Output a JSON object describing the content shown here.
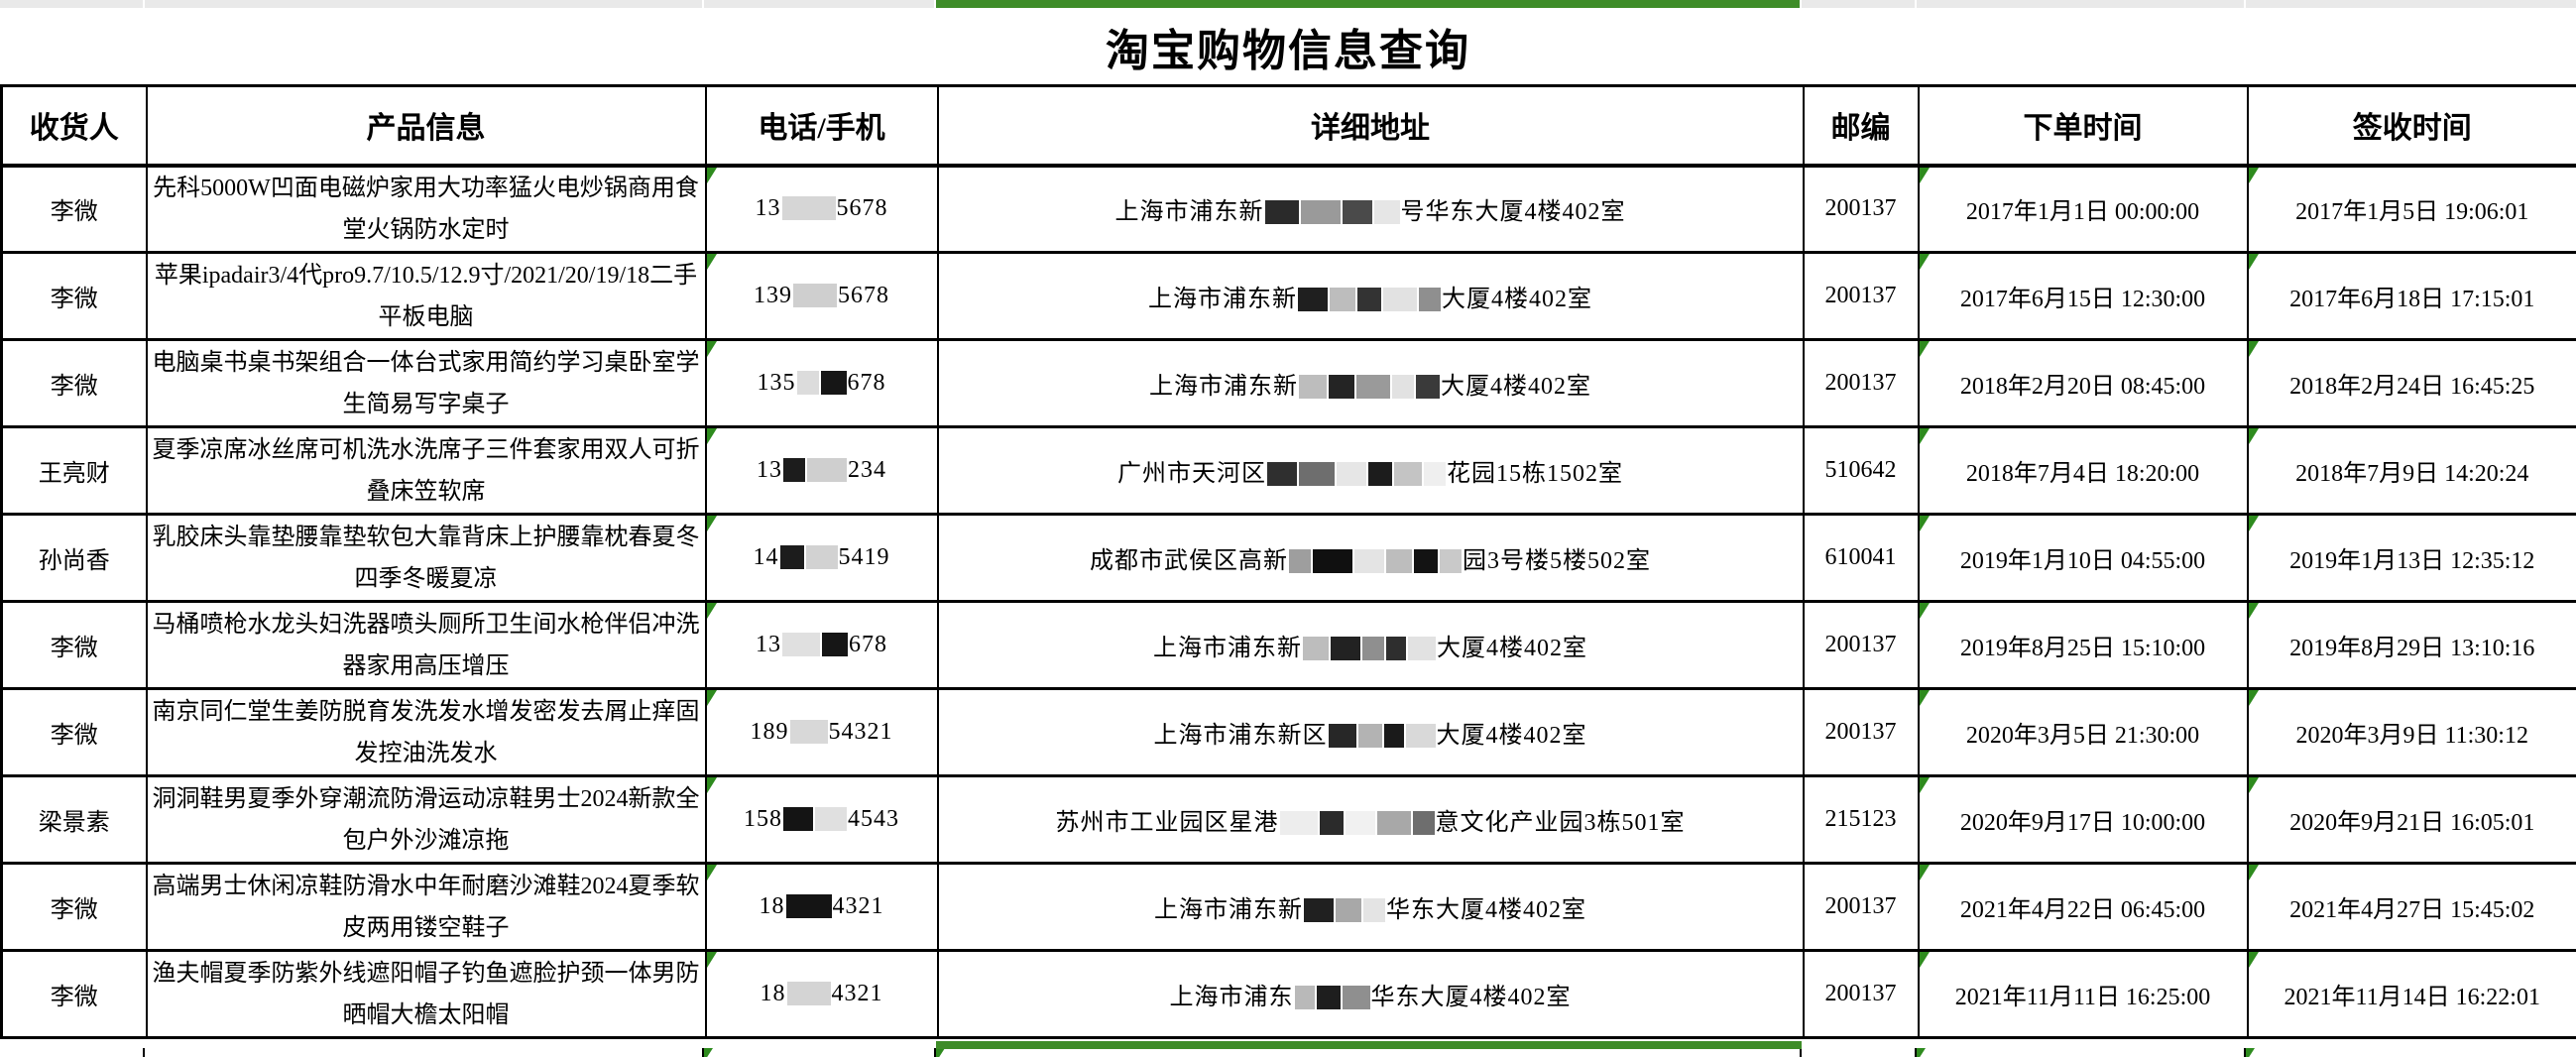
{
  "page": {
    "title": "淘宝购物信息查询"
  },
  "colors": {
    "accent_green": "#3e8c28",
    "triangle_green": "#2e8b1e",
    "grid_line": "#000000",
    "strip_gray": "#e9e9e9",
    "censor_dark": "#1c1c1c",
    "censor_gray": "#c4c4c4",
    "censor_light": "#e4e4e4"
  },
  "icons": {
    "cell_corner_triangle": "green top-left error-indicator triangle"
  },
  "table": {
    "headers": [
      "收货人",
      "产品信息",
      "电话/手机",
      "详细地址",
      "邮编",
      "下单时间",
      "签收时间"
    ],
    "rows": [
      {
        "recipient": "李微",
        "product": "先科5000W凹面电磁炉家用大功率猛火电炒锅商用食堂火锅防水定时",
        "phone_pre": "13",
        "phone_post": "5678",
        "phone_blocks": [
          {
            "w": 54,
            "c": "#d6d6d6"
          }
        ],
        "addr_pre": "上海市浦东新",
        "addr_post": "号华东大厦4楼402室",
        "addr_blocks": [
          {
            "w": 34,
            "c": "#2a2a2a"
          },
          {
            "w": 40,
            "c": "#9a9a9a"
          },
          {
            "w": 30,
            "c": "#4a4a4a"
          },
          {
            "w": 26,
            "c": "#e6e6e6"
          }
        ],
        "zip": "200137",
        "order_time": "2017年1月1日 00:00:00",
        "sign_time": "2017年1月5日 19:06:01"
      },
      {
        "recipient": "李微",
        "product": "苹果ipadair3/4代pro9.7/10.5/12.9寸/2021/20/19/18二手平板电脑",
        "phone_pre": "139",
        "phone_post": "5678",
        "phone_blocks": [
          {
            "w": 44,
            "c": "#cfcfcf"
          }
        ],
        "addr_pre": "上海市浦东新",
        "addr_post": "大厦4楼402室",
        "addr_blocks": [
          {
            "w": 30,
            "c": "#1f1f1f"
          },
          {
            "w": 26,
            "c": "#bdbdbd"
          },
          {
            "w": 24,
            "c": "#333333"
          },
          {
            "w": 34,
            "c": "#e2e2e2"
          },
          {
            "w": 22,
            "c": "#8f8f8f"
          }
        ],
        "zip": "200137",
        "order_time": "2017年6月15日 12:30:00",
        "sign_time": "2017年6月18日 17:15:01"
      },
      {
        "recipient": "李微",
        "product": "电脑桌书桌书架组合一体台式家用简约学习桌卧室学生简易写字桌子",
        "phone_pre": "135",
        "phone_post": "678",
        "phone_blocks": [
          {
            "w": 22,
            "c": "#dcdcdc"
          },
          {
            "w": 26,
            "c": "#161616"
          }
        ],
        "addr_pre": "上海市浦东新",
        "addr_post": "大厦4楼402室",
        "addr_blocks": [
          {
            "w": 28,
            "c": "#bdbdbd"
          },
          {
            "w": 26,
            "c": "#242424"
          },
          {
            "w": 34,
            "c": "#9a9a9a"
          },
          {
            "w": 22,
            "c": "#e2e2e2"
          },
          {
            "w": 24,
            "c": "#3a3a3a"
          }
        ],
        "zip": "200137",
        "order_time": "2018年2月20日 08:45:00",
        "sign_time": "2018年2月24日 16:45:25"
      },
      {
        "recipient": "王亮财",
        "product": "夏季凉席冰丝席可机洗水洗席子三件套家用双人可折叠床笠软席",
        "phone_pre": "13",
        "phone_post": "234",
        "phone_blocks": [
          {
            "w": 22,
            "c": "#1c1c1c"
          },
          {
            "w": 40,
            "c": "#cfcfcf"
          }
        ],
        "addr_pre": "广州市天河区",
        "addr_post": "花园15栋1502室",
        "addr_blocks": [
          {
            "w": 30,
            "c": "#2f2f2f"
          },
          {
            "w": 36,
            "c": "#6e6e6e"
          },
          {
            "w": 30,
            "c": "#e6e6e6"
          },
          {
            "w": 24,
            "c": "#1c1c1c"
          },
          {
            "w": 28,
            "c": "#c4c4c4"
          },
          {
            "w": 22,
            "c": "#efefef"
          }
        ],
        "zip": "510642",
        "order_time": "2018年7月4日 18:20:00",
        "sign_time": "2018年7月9日 14:20:24"
      },
      {
        "recipient": "孙尚香",
        "product": "乳胶床头靠垫腰靠垫软包大靠背床上护腰靠枕春夏冬四季冬暖夏凉",
        "phone_pre": "14",
        "phone_post": "5419",
        "phone_blocks": [
          {
            "w": 24,
            "c": "#1c1c1c"
          },
          {
            "w": 32,
            "c": "#d2d2d2"
          }
        ],
        "addr_pre": "成都市武侯区高新",
        "addr_post": "园3号楼5楼502室",
        "addr_blocks": [
          {
            "w": 22,
            "c": "#9e9e9e"
          },
          {
            "w": 40,
            "c": "#101010"
          },
          {
            "w": 30,
            "c": "#e4e4e4"
          },
          {
            "w": 26,
            "c": "#bdbdbd"
          },
          {
            "w": 24,
            "c": "#131313"
          },
          {
            "w": 22,
            "c": "#c9c9c9"
          }
        ],
        "zip": "610041",
        "order_time": "2019年1月10日 04:55:00",
        "sign_time": "2019年1月13日 12:35:12"
      },
      {
        "recipient": "李微",
        "product": "马桶喷枪水龙头妇洗器喷头厕所卫生间水枪伴侣冲洗器家用高压增压",
        "phone_pre": "13",
        "phone_post": "678",
        "phone_blocks": [
          {
            "w": 38,
            "c": "#e0e0e0"
          },
          {
            "w": 26,
            "c": "#161616"
          }
        ],
        "addr_pre": "上海市浦东新",
        "addr_post": "大厦4楼402室",
        "addr_blocks": [
          {
            "w": 26,
            "c": "#bdbdbd"
          },
          {
            "w": 30,
            "c": "#222222"
          },
          {
            "w": 22,
            "c": "#8f8f8f"
          },
          {
            "w": 20,
            "c": "#2e2e2e"
          },
          {
            "w": 28,
            "c": "#e2e2e2"
          }
        ],
        "zip": "200137",
        "order_time": "2019年8月25日 15:10:00",
        "sign_time": "2019年8月29日 13:10:16"
      },
      {
        "recipient": "李微",
        "product": "南京同仁堂生姜防脱育发洗发水增发密发去屑止痒固发控油洗发水",
        "phone_pre": "189",
        "phone_post": "54321",
        "phone_blocks": [
          {
            "w": 38,
            "c": "#d8d8d8"
          }
        ],
        "addr_pre": "上海市浦东新区",
        "addr_post": "大厦4楼402室",
        "addr_blocks": [
          {
            "w": 28,
            "c": "#272727"
          },
          {
            "w": 24,
            "c": "#b3b3b3"
          },
          {
            "w": 20,
            "c": "#1a1a1a"
          },
          {
            "w": 30,
            "c": "#d9d9d9"
          }
        ],
        "zip": "200137",
        "order_time": "2020年3月5日 21:30:00",
        "sign_time": "2020年3月9日 11:30:12"
      },
      {
        "recipient": "梁景素",
        "product": "洞洞鞋男夏季外穿潮流防滑运动凉鞋男士2024新款全包户外沙滩凉拖",
        "phone_pre": "158",
        "phone_post": "4543",
        "phone_blocks": [
          {
            "w": 30,
            "c": "#141414"
          },
          {
            "w": 32,
            "c": "#e0e0e0"
          }
        ],
        "addr_pre": "苏州市工业园区星港",
        "addr_post": "意文化产业园3栋501室",
        "addr_blocks": [
          {
            "w": 38,
            "c": "#ededed"
          },
          {
            "w": 24,
            "c": "#2b2b2b"
          },
          {
            "w": 30,
            "c": "#f1f1f1"
          },
          {
            "w": 34,
            "c": "#a8a8a8"
          },
          {
            "w": 22,
            "c": "#6e6e6e"
          }
        ],
        "zip": "215123",
        "order_time": "2020年9月17日 10:00:00",
        "sign_time": "2020年9月21日 16:05:01"
      },
      {
        "recipient": "李微",
        "product": "高端男士休闲凉鞋防滑水中年耐磨沙滩鞋2024夏季软皮两用镂空鞋子",
        "phone_pre": "18",
        "phone_post": "4321",
        "phone_blocks": [
          {
            "w": 46,
            "c": "#141414"
          }
        ],
        "addr_pre": "上海市浦东新",
        "addr_post": "华东大厦4楼402室",
        "addr_blocks": [
          {
            "w": 30,
            "c": "#202020"
          },
          {
            "w": 26,
            "c": "#a8a8a8"
          },
          {
            "w": 22,
            "c": "#e4e4e4"
          }
        ],
        "zip": "200137",
        "order_time": "2021年4月22日 06:45:00",
        "sign_time": "2021年4月27日 15:45:02"
      },
      {
        "recipient": "李微",
        "product": "渔夫帽夏季防紫外线遮阳帽子钓鱼遮脸护颈一体男防晒帽大檐太阳帽",
        "phone_pre": "18",
        "phone_post": "4321",
        "phone_blocks": [
          {
            "w": 44,
            "c": "#d4d4d4"
          }
        ],
        "addr_pre": "上海市浦东",
        "addr_post": "华东大厦4楼402室",
        "addr_blocks": [
          {
            "w": 20,
            "c": "#b9b9b9"
          },
          {
            "w": 24,
            "c": "#1e1e1e"
          },
          {
            "w": 28,
            "c": "#8f8f8f"
          }
        ],
        "zip": "200137",
        "order_time": "2021年11月11日 16:25:00",
        "sign_time": "2021年11月14日 16:22:01"
      }
    ]
  }
}
